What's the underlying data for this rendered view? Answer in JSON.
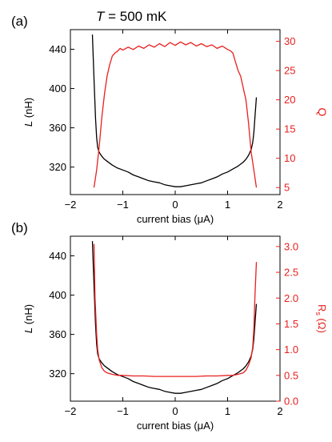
{
  "chart_data": [
    {
      "type": "line",
      "panel_label": "(a)",
      "annotation": {
        "italic": "T",
        "rest": " = 500 mK"
      },
      "xlabel": "current bias (μA)",
      "ylabel_left": {
        "italic": "L",
        "rest": " (nH)"
      },
      "ylabel_right": "Q",
      "xlim": [
        -2,
        2
      ],
      "ylim_left": [
        292,
        460
      ],
      "ylim_right": [
        3.8,
        32
      ],
      "x_ticks": [
        -2,
        -1,
        0,
        1,
        2
      ],
      "y_ticks_left": [
        320,
        360,
        400,
        440
      ],
      "y_ticks_right": [
        5,
        10,
        15,
        20,
        25,
        30
      ],
      "grid": false,
      "colors": {
        "left": "#000000",
        "right": "#e8201f"
      },
      "series": [
        {
          "axis": "left",
          "color": "#000000",
          "x": [
            -1.58,
            -1.55,
            -1.52,
            -1.5,
            -1.48,
            -1.45,
            -1.4,
            -1.35,
            -1.3,
            -1.2,
            -1.1,
            -1.0,
            -0.9,
            -0.8,
            -0.7,
            -0.6,
            -0.5,
            -0.4,
            -0.3,
            -0.2,
            -0.1,
            0.0,
            0.1,
            0.2,
            0.3,
            0.4,
            0.5,
            0.6,
            0.7,
            0.8,
            0.9,
            1.0,
            1.1,
            1.2,
            1.3,
            1.35,
            1.4,
            1.45,
            1.48,
            1.5,
            1.52,
            1.55
          ],
          "y": [
            455,
            410,
            370,
            350,
            340,
            335,
            331,
            328,
            326,
            322,
            319,
            317,
            315,
            312,
            310,
            308,
            306,
            305,
            304,
            302,
            301,
            300,
            300,
            301,
            302,
            303,
            304,
            306,
            308,
            310,
            313,
            315,
            318,
            321,
            325,
            328,
            332,
            338,
            345,
            355,
            370,
            391
          ]
        },
        {
          "axis": "right",
          "color": "#e8201f",
          "x": [
            -1.55,
            -1.5,
            -1.45,
            -1.4,
            -1.35,
            -1.3,
            -1.25,
            -1.2,
            -1.15,
            -1.1,
            -1.05,
            -1.0,
            -0.9,
            -0.8,
            -0.7,
            -0.6,
            -0.5,
            -0.4,
            -0.3,
            -0.2,
            -0.1,
            0.0,
            0.1,
            0.2,
            0.3,
            0.4,
            0.5,
            0.6,
            0.7,
            0.8,
            0.9,
            1.0,
            1.05,
            1.1,
            1.15,
            1.2,
            1.25,
            1.3,
            1.35,
            1.4,
            1.45,
            1.5,
            1.55
          ],
          "y": [
            5,
            8,
            12,
            17,
            21,
            24,
            26,
            27.5,
            28,
            28.3,
            28.8,
            28.5,
            29,
            28.6,
            29.2,
            28.8,
            29.4,
            29,
            29.6,
            29.1,
            29.8,
            29.3,
            29.9,
            29.4,
            29.8,
            29.2,
            29.6,
            29.1,
            29.4,
            28.8,
            29.2,
            28.6,
            28.4,
            28,
            26.5,
            25,
            24,
            22,
            20,
            16,
            11,
            8,
            5
          ]
        }
      ]
    },
    {
      "type": "line",
      "panel_label": "(b)",
      "xlabel": "current bias (μA)",
      "ylabel_left": {
        "italic": "L",
        "rest": " (nH)"
      },
      "ylabel_right": {
        "main": "R",
        "sub": "s",
        "rest": " (Ω)"
      },
      "xlim": [
        -2,
        2
      ],
      "ylim_left": [
        292,
        460
      ],
      "ylim_right": [
        0,
        3.2
      ],
      "x_ticks": [
        -2,
        -1,
        0,
        1,
        2
      ],
      "y_ticks_left": [
        320,
        360,
        400,
        440
      ],
      "y_ticks_right": [
        "0.0",
        "0.5",
        "1.0",
        "1.5",
        "2.0",
        "2.5",
        "3.0"
      ],
      "grid": false,
      "colors": {
        "left": "#000000",
        "right": "#e8201f"
      },
      "series": [
        {
          "axis": "left",
          "color": "#000000",
          "x": [
            -1.58,
            -1.55,
            -1.52,
            -1.5,
            -1.48,
            -1.45,
            -1.4,
            -1.35,
            -1.3,
            -1.2,
            -1.1,
            -1.0,
            -0.9,
            -0.8,
            -0.7,
            -0.6,
            -0.5,
            -0.4,
            -0.3,
            -0.2,
            -0.1,
            0.0,
            0.1,
            0.2,
            0.3,
            0.4,
            0.5,
            0.6,
            0.7,
            0.8,
            0.9,
            1.0,
            1.1,
            1.2,
            1.3,
            1.35,
            1.4,
            1.45,
            1.48,
            1.5,
            1.52,
            1.55
          ],
          "y": [
            455,
            410,
            370,
            350,
            340,
            335,
            331,
            328,
            326,
            322,
            319,
            317,
            315,
            312,
            310,
            308,
            306,
            305,
            304,
            302,
            301,
            300,
            300,
            301,
            302,
            303,
            304,
            306,
            308,
            310,
            313,
            315,
            318,
            321,
            325,
            328,
            332,
            338,
            345,
            355,
            370,
            391
          ]
        },
        {
          "axis": "right",
          "color": "#e8201f",
          "x": [
            -1.55,
            -1.53,
            -1.5,
            -1.48,
            -1.45,
            -1.4,
            -1.35,
            -1.3,
            -1.2,
            -1.1,
            -1.0,
            -0.8,
            -0.6,
            -0.4,
            -0.2,
            0.0,
            0.2,
            0.4,
            0.6,
            0.8,
            1.0,
            1.1,
            1.2,
            1.3,
            1.35,
            1.4,
            1.45,
            1.48,
            1.5,
            1.52,
            1.55
          ],
          "y": [
            3.05,
            2.0,
            1.3,
            1.0,
            0.8,
            0.65,
            0.58,
            0.55,
            0.52,
            0.5,
            0.5,
            0.49,
            0.49,
            0.48,
            0.48,
            0.48,
            0.48,
            0.48,
            0.49,
            0.49,
            0.5,
            0.5,
            0.52,
            0.55,
            0.6,
            0.7,
            0.85,
            1.05,
            1.4,
            2.0,
            2.7
          ]
        }
      ]
    }
  ]
}
